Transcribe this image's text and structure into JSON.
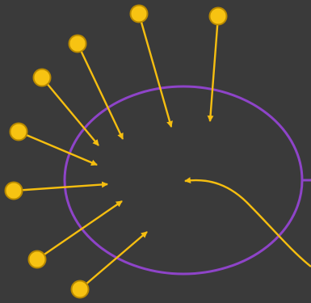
{
  "colors": {
    "background": "#3a3a3a",
    "boundary": "#8e44c8",
    "arrow": "#f5be10",
    "node_fill": "#f7c312",
    "node_stroke": "#b88900"
  },
  "diagram": {
    "boundary_shape": "ellipse",
    "incoming_source_count": 9,
    "sources": [
      {
        "name": "source-1"
      },
      {
        "name": "source-2"
      },
      {
        "name": "source-3"
      },
      {
        "name": "source-4"
      },
      {
        "name": "source-5"
      },
      {
        "name": "source-6"
      },
      {
        "name": "source-7"
      },
      {
        "name": "source-8"
      },
      {
        "name": "external-curve-source"
      }
    ]
  }
}
